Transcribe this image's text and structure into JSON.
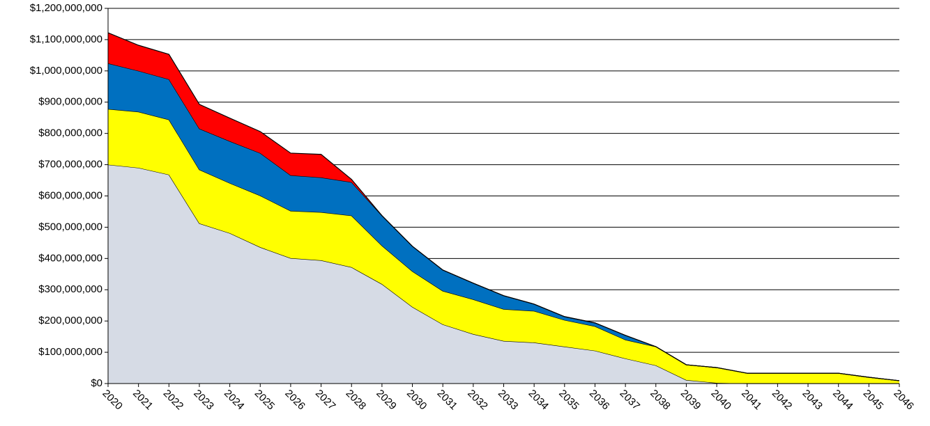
{
  "chart_data": {
    "type": "stacked_area",
    "categories": [
      "2020",
      "2021",
      "2022",
      "2023",
      "2024",
      "2025",
      "2026",
      "2027",
      "2028",
      "2029",
      "2030",
      "2031",
      "2032",
      "2033",
      "2034",
      "2035",
      "2036",
      "2037",
      "2038",
      "2039",
      "2040",
      "2041",
      "2042",
      "2043",
      "2044",
      "2045",
      "2046"
    ],
    "series": [
      {
        "color": "#d6dbe5",
        "values": [
          700000000,
          690000000,
          668000000,
          512000000,
          481000000,
          436000000,
          401000000,
          394000000,
          372000000,
          318000000,
          245000000,
          189000000,
          158000000,
          136000000,
          131000000,
          118000000,
          105000000,
          80000000,
          58000000,
          11000000,
          2000000,
          0,
          0,
          0,
          0,
          0,
          0
        ]
      },
      {
        "color": "#ffff00",
        "values": [
          178000000,
          179000000,
          176000000,
          172000000,
          160000000,
          165000000,
          151000000,
          154000000,
          165000000,
          123000000,
          114000000,
          107000000,
          111000000,
          102000000,
          101000000,
          85000000,
          78000000,
          60000000,
          60000000,
          49000000,
          49000000,
          33000000,
          33000000,
          33000000,
          33000000,
          20000000,
          9000000
        ]
      },
      {
        "color": "#0070c0",
        "values": [
          146000000,
          131000000,
          129000000,
          131000000,
          134000000,
          136000000,
          114000000,
          111000000,
          107000000,
          96000000,
          80000000,
          67000000,
          52000000,
          43000000,
          22000000,
          11000000,
          11000000,
          14000000,
          0,
          0,
          0,
          0,
          0,
          0,
          0,
          0,
          0
        ]
      },
      {
        "color": "#ff0000",
        "values": [
          98000000,
          82000000,
          80000000,
          78000000,
          74000000,
          69000000,
          71000000,
          74000000,
          9000000,
          0,
          0,
          0,
          0,
          0,
          0,
          0,
          0,
          0,
          0,
          0,
          0,
          0,
          0,
          0,
          0,
          0,
          0
        ]
      }
    ],
    "ylim": [
      0,
      1200000000
    ],
    "yticks": [
      {
        "value": 0,
        "label": "$0"
      },
      {
        "value": 100000000,
        "label": "$100,000,000"
      },
      {
        "value": 200000000,
        "label": "$200,000,000"
      },
      {
        "value": 300000000,
        "label": "$300,000,000"
      },
      {
        "value": 400000000,
        "label": "$400,000,000"
      },
      {
        "value": 500000000,
        "label": "$500,000,000"
      },
      {
        "value": 600000000,
        "label": "$600,000,000"
      },
      {
        "value": 700000000,
        "label": "$700,000,000"
      },
      {
        "value": 800000000,
        "label": "$800,000,000"
      },
      {
        "value": 900000000,
        "label": "$900,000,000"
      },
      {
        "value": 1000000000,
        "label": "$1,000,000,000"
      },
      {
        "value": 1100000000,
        "label": "$1,100,000,000"
      },
      {
        "value": 1200000000,
        "label": "$1,200,000,000"
      }
    ],
    "grid": true
  }
}
